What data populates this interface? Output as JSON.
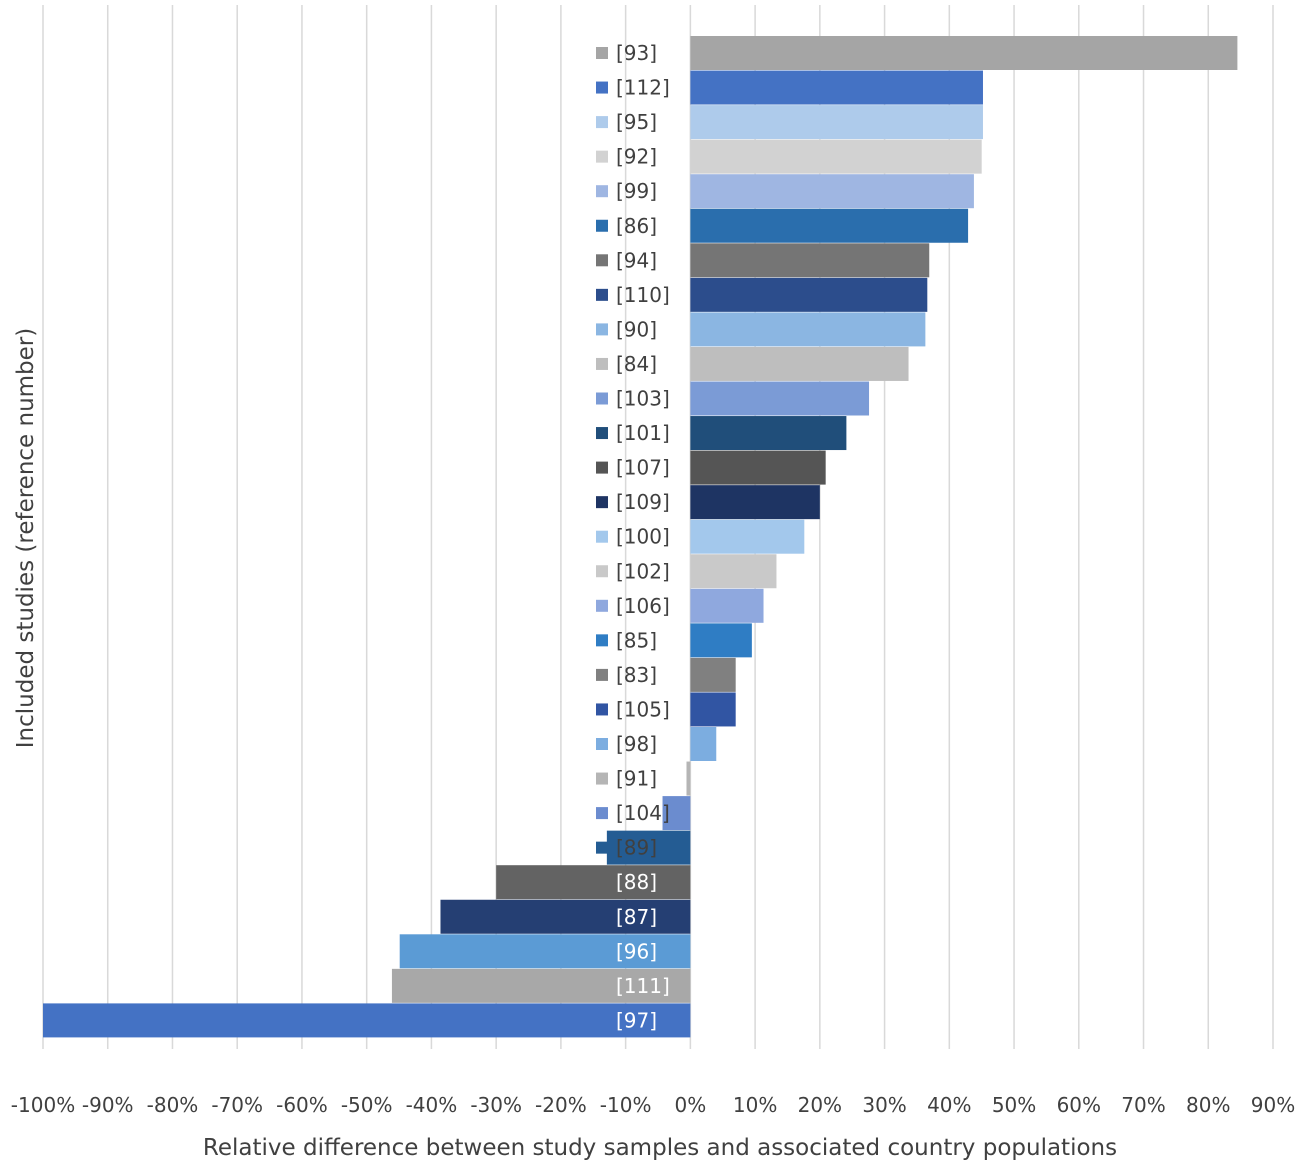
{
  "chart_data": {
    "type": "bar",
    "orientation": "horizontal",
    "xlabel": "Relative difference between study samples and associated country populations",
    "ylabel": "Included studies (reference number)",
    "xlim": [
      -100,
      90
    ],
    "x_ticks": [
      -100,
      -90,
      -80,
      -70,
      -60,
      -50,
      -40,
      -30,
      -20,
      -10,
      0,
      10,
      20,
      30,
      40,
      50,
      60,
      70,
      80,
      90
    ],
    "x_tick_labels": [
      "-100%",
      "-90%",
      "-80%",
      "-70%",
      "-60%",
      "-50%",
      "-40%",
      "-30%",
      "-20%",
      "-10%",
      "0%",
      "10%",
      "20%",
      "30%",
      "40%",
      "50%",
      "60%",
      "70%",
      "80%",
      "90%"
    ],
    "grid": "vertical",
    "legend": "none",
    "categories": [
      "[93]",
      "[112]",
      "[95]",
      "[92]",
      "[99]",
      "[86]",
      "[94]",
      "[110]",
      "[90]",
      "[84]",
      "[103]",
      "[101]",
      "[107]",
      "[109]",
      "[100]",
      "[102]",
      "[106]",
      "[85]",
      "[83]",
      "[105]",
      "[98]",
      "[91]",
      "[104]",
      "[89]",
      "[88]",
      "[87]",
      "[96]",
      "[111]",
      "[97]"
    ],
    "values": [
      84.5,
      45.2,
      45.2,
      45.0,
      43.8,
      42.9,
      36.9,
      36.6,
      36.3,
      33.7,
      27.6,
      24.1,
      20.9,
      20.0,
      17.6,
      13.3,
      11.3,
      9.5,
      7.0,
      7.0,
      4.0,
      -0.6,
      -4.3,
      -12.9,
      -30.0,
      -38.6,
      -44.9,
      -46.1,
      -100.0
    ],
    "colors": [
      "#a5a5a5",
      "#4472c4",
      "#aecbeb",
      "#d2d2d2",
      "#9fb6e2",
      "#2a6ead",
      "#757575",
      "#2c4d8c",
      "#8bb6e2",
      "#bebebe",
      "#7b9bd6",
      "#204e7a",
      "#555555",
      "#1e3463",
      "#a3c8ec",
      "#c9c9c9",
      "#8fa8de",
      "#2f7dc4",
      "#808080",
      "#3155a3",
      "#7cade0",
      "#b5b5b5",
      "#6b8ccf",
      "#245c93",
      "#636363",
      "#253f73",
      "#5b9bd5",
      "#a8a8a8",
      "#4472c4"
    ],
    "label_color_light": "#ffffff",
    "label_color_dark": "#404040",
    "grid_color": "#d9d9d9"
  }
}
